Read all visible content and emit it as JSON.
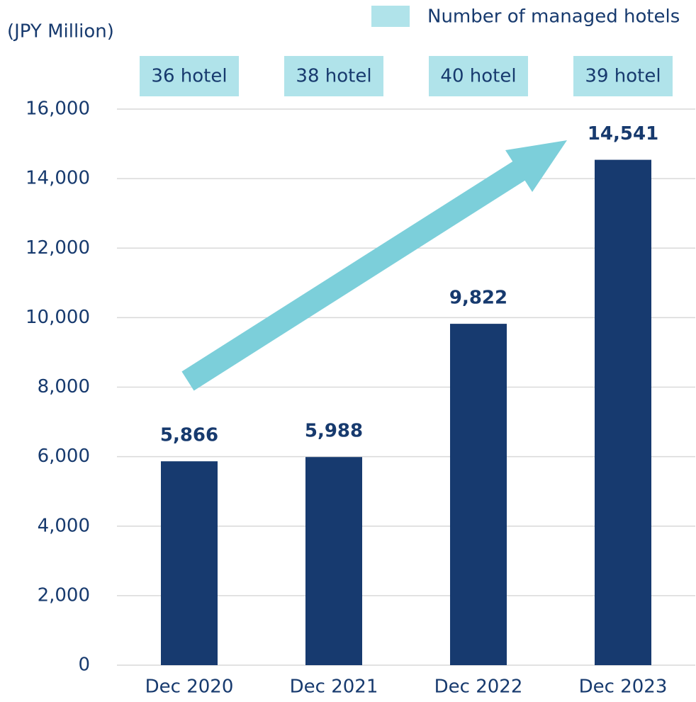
{
  "chart_data": {
    "type": "bar",
    "y_axis_label": "(JPY Million)",
    "categories": [
      "Dec 2020",
      "Dec 2021",
      "Dec 2022",
      "Dec 2023"
    ],
    "values": [
      5866,
      5988,
      9822,
      14541
    ],
    "value_labels": [
      "5,866",
      "5,988",
      "9,822",
      "14,541"
    ],
    "color": "#173a6f",
    "hotels": {
      "name": "Number of managed hotels",
      "color": "#b0e3ea",
      "values": [
        36,
        38,
        40,
        39
      ],
      "value_labels": [
        "36 hotel",
        "38 hotel",
        "40 hotel",
        "39 hotel"
      ]
    },
    "ylim": [
      0,
      16000
    ],
    "yticks": [
      0,
      {
        "value": 2000,
        "label": "2,000"
      },
      {
        "value": 4000,
        "label": "4,000"
      },
      {
        "value": 6000,
        "label": "6,000"
      },
      {
        "value": 8000,
        "label": "8,000"
      },
      {
        "value": 10000,
        "label": "10,000"
      },
      {
        "value": 12000,
        "label": "12,000"
      },
      {
        "value": 14000,
        "label": "14,000"
      },
      {
        "value": 16000,
        "label": "16,000"
      }
    ],
    "grid": true
  }
}
